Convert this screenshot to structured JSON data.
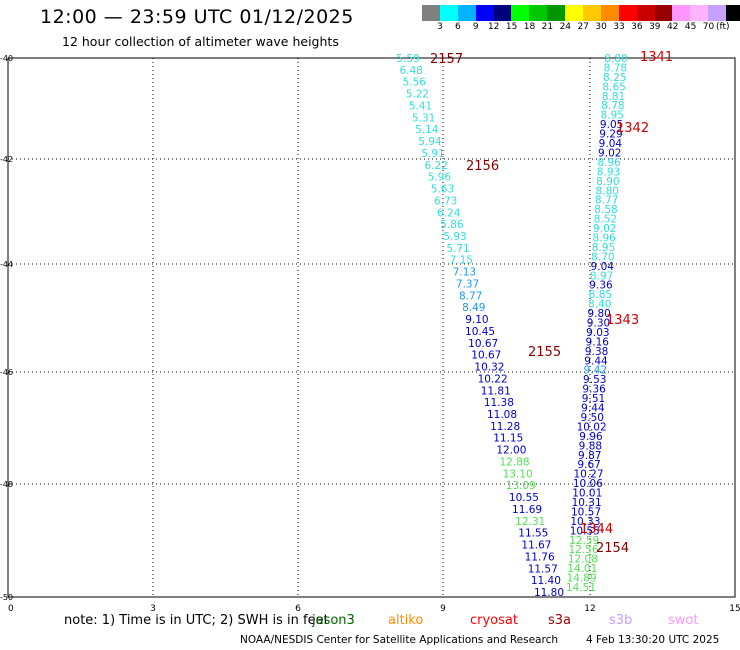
{
  "header": {
    "title": "12:00 — 23:59 UTC 01/12/2025",
    "subtitle": "12 hour collection of altimeter wave heights"
  },
  "colorbar": {
    "colors": [
      "#808080",
      "#00ffff",
      "#00b4ff",
      "#0000ff",
      "#00007f",
      "#00ff00",
      "#00c800",
      "#009600",
      "#ffff00",
      "#ffc800",
      "#ff8c00",
      "#ff0000",
      "#c80000",
      "#960000",
      "#ff96ff",
      "#ffb4ff",
      "#c8a0ff",
      "#000000"
    ],
    "labels": [
      "3",
      "6",
      "9",
      "12",
      "15",
      "18",
      "21",
      "24",
      "27",
      "30",
      "33",
      "36",
      "39",
      "42",
      "45",
      "70"
    ],
    "unit": "(ft)"
  },
  "axes": {
    "x_ticks": [
      "0",
      "3",
      "6",
      "9",
      "12",
      "15"
    ],
    "y_ticks": [
      "-40",
      "-42",
      "-44",
      "-46",
      "-48",
      "-50"
    ]
  },
  "passes": [
    {
      "id": "2157",
      "color": "#800000"
    },
    {
      "id": "2156",
      "color": "#800000"
    },
    {
      "id": "2155",
      "color": "#800000"
    },
    {
      "id": "2154",
      "color": "#800000"
    },
    {
      "id": "1341",
      "color": "#cc0000"
    },
    {
      "id": "1342",
      "color": "#cc0000"
    },
    {
      "id": "1343",
      "color": "#cc0000"
    },
    {
      "id": "1344",
      "color": "#cc0000"
    }
  ],
  "track_left": [
    {
      "v": "5.59",
      "c": "#33dddd"
    },
    {
      "v": "6.48",
      "c": "#33dddd"
    },
    {
      "v": "5.56",
      "c": "#33dddd"
    },
    {
      "v": "5.22",
      "c": "#33dddd"
    },
    {
      "v": "5.41",
      "c": "#33dddd"
    },
    {
      "v": "5.31",
      "c": "#33dddd"
    },
    {
      "v": "5.14",
      "c": "#33dddd"
    },
    {
      "v": "5.94",
      "c": "#33dddd"
    },
    {
      "v": "5.91",
      "c": "#33dddd"
    },
    {
      "v": "6.22",
      "c": "#33dddd"
    },
    {
      "v": "5.96",
      "c": "#33dddd"
    },
    {
      "v": "5.63",
      "c": "#33dddd"
    },
    {
      "v": "6.73",
      "c": "#33dddd"
    },
    {
      "v": "6.24",
      "c": "#33dddd"
    },
    {
      "v": "5.86",
      "c": "#33dddd"
    },
    {
      "v": "5.93",
      "c": "#33dddd"
    },
    {
      "v": "5.71",
      "c": "#33dddd"
    },
    {
      "v": "7.15",
      "c": "#33dddd"
    },
    {
      "v": "7.13",
      "c": "#2299ee"
    },
    {
      "v": "7.37",
      "c": "#2299ee"
    },
    {
      "v": "8.77",
      "c": "#2299ee"
    },
    {
      "v": "8.49",
      "c": "#2299ee"
    },
    {
      "v": "9.10",
      "c": "#0000cc"
    },
    {
      "v": "10.45",
      "c": "#0000cc"
    },
    {
      "v": "10.67",
      "c": "#0000cc"
    },
    {
      "v": "10.67",
      "c": "#0000cc"
    },
    {
      "v": "10.32",
      "c": "#0000cc"
    },
    {
      "v": "10.22",
      "c": "#0000cc"
    },
    {
      "v": "11.81",
      "c": "#0000cc"
    },
    {
      "v": "11.38",
      "c": "#0000cc"
    },
    {
      "v": "11.08",
      "c": "#0000cc"
    },
    {
      "v": "11.28",
      "c": "#0000cc"
    },
    {
      "v": "11.15",
      "c": "#0000cc"
    },
    {
      "v": "12.00",
      "c": "#0000cc"
    },
    {
      "v": "12.88",
      "c": "#55dd55"
    },
    {
      "v": "13.10",
      "c": "#55dd55"
    },
    {
      "v": "13.09",
      "c": "#55dd55"
    },
    {
      "v": "10.55",
      "c": "#0000cc"
    },
    {
      "v": "11.69",
      "c": "#0000cc"
    },
    {
      "v": "12.31",
      "c": "#55dd55"
    },
    {
      "v": "11.55",
      "c": "#0000cc"
    },
    {
      "v": "11.67",
      "c": "#0000cc"
    },
    {
      "v": "11.76",
      "c": "#0000cc"
    },
    {
      "v": "11.57",
      "c": "#0000cc"
    },
    {
      "v": "11.40",
      "c": "#0000cc"
    },
    {
      "v": "11.80",
      "c": "#0000cc"
    }
  ],
  "track_right": [
    {
      "v": "8.80",
      "c": "#33dddd"
    },
    {
      "v": "8.78",
      "c": "#33dddd"
    },
    {
      "v": "8.25",
      "c": "#33dddd"
    },
    {
      "v": "8.65",
      "c": "#33dddd"
    },
    {
      "v": "8.81",
      "c": "#33dddd"
    },
    {
      "v": "8.78",
      "c": "#33dddd"
    },
    {
      "v": "8.95",
      "c": "#33dddd"
    },
    {
      "v": "9.05",
      "c": "#0000cc"
    },
    {
      "v": "9.29",
      "c": "#0000cc"
    },
    {
      "v": "9.04",
      "c": "#0000cc"
    },
    {
      "v": "9.02",
      "c": "#0000cc"
    },
    {
      "v": "8.96",
      "c": "#33dddd"
    },
    {
      "v": "8.93",
      "c": "#33dddd"
    },
    {
      "v": "8.90",
      "c": "#33dddd"
    },
    {
      "v": "8.80",
      "c": "#33dddd"
    },
    {
      "v": "8.77",
      "c": "#33dddd"
    },
    {
      "v": "8.58",
      "c": "#33dddd"
    },
    {
      "v": "8.52",
      "c": "#33dddd"
    },
    {
      "v": "9.02",
      "c": "#33dddd"
    },
    {
      "v": "8.96",
      "c": "#33dddd"
    },
    {
      "v": "8.95",
      "c": "#33dddd"
    },
    {
      "v": "8.70",
      "c": "#33dddd"
    },
    {
      "v": "9.04",
      "c": "#0000cc"
    },
    {
      "v": "8.97",
      "c": "#33dddd"
    },
    {
      "v": "9.36",
      "c": "#0000cc"
    },
    {
      "v": "8.85",
      "c": "#33dddd"
    },
    {
      "v": "8.40",
      "c": "#33dddd"
    },
    {
      "v": "9.80",
      "c": "#0000cc"
    },
    {
      "v": "9.30",
      "c": "#0000cc"
    },
    {
      "v": "9.03",
      "c": "#0000cc"
    },
    {
      "v": "9.16",
      "c": "#0000cc"
    },
    {
      "v": "9.38",
      "c": "#0000cc"
    },
    {
      "v": "9.44",
      "c": "#0000cc"
    },
    {
      "v": "9.42",
      "c": "#2299ee"
    },
    {
      "v": "9.53",
      "c": "#0000cc"
    },
    {
      "v": "9.36",
      "c": "#0000cc"
    },
    {
      "v": "9.51",
      "c": "#0000cc"
    },
    {
      "v": "9.44",
      "c": "#0000cc"
    },
    {
      "v": "9.50",
      "c": "#0000cc"
    },
    {
      "v": "10.02",
      "c": "#0000cc"
    },
    {
      "v": "9.96",
      "c": "#0000cc"
    },
    {
      "v": "9.88",
      "c": "#0000cc"
    },
    {
      "v": "9.87",
      "c": "#0000cc"
    },
    {
      "v": "9.67",
      "c": "#0000cc"
    },
    {
      "v": "10.27",
      "c": "#0000cc"
    },
    {
      "v": "10.06",
      "c": "#0000cc"
    },
    {
      "v": "10.01",
      "c": "#0000cc"
    },
    {
      "v": "10.31",
      "c": "#0000cc"
    },
    {
      "v": "10.57",
      "c": "#0000cc"
    },
    {
      "v": "10.33",
      "c": "#0000cc"
    },
    {
      "v": "10.55",
      "c": "#0000cc"
    },
    {
      "v": "12.59",
      "c": "#55dd55"
    },
    {
      "v": "12.56",
      "c": "#55dd55"
    },
    {
      "v": "12.08",
      "c": "#55dd55"
    },
    {
      "v": "14.01",
      "c": "#55dd55"
    },
    {
      "v": "14.89",
      "c": "#55dd55"
    },
    {
      "v": "14.51",
      "c": "#55dd55"
    }
  ],
  "note": {
    "text": "note:  1) Time is in UTC; 2) SWH is in feet",
    "missions": [
      {
        "label": "jason3",
        "color": "#006400"
      },
      {
        "label": "altiko",
        "color": "#ff8c00"
      },
      {
        "label": "cryosat",
        "color": "#ff0000"
      },
      {
        "label": "s3a",
        "color": "#990000"
      },
      {
        "label": "s3b",
        "color": "#c8a0ff"
      },
      {
        "label": "swot",
        "color": "#ff96ff"
      }
    ]
  },
  "footer": {
    "credit": "NOAA/NESDIS Center for Satellite Applications and Research",
    "timestamp": "4 Feb 13:30:20 UTC 2025"
  }
}
